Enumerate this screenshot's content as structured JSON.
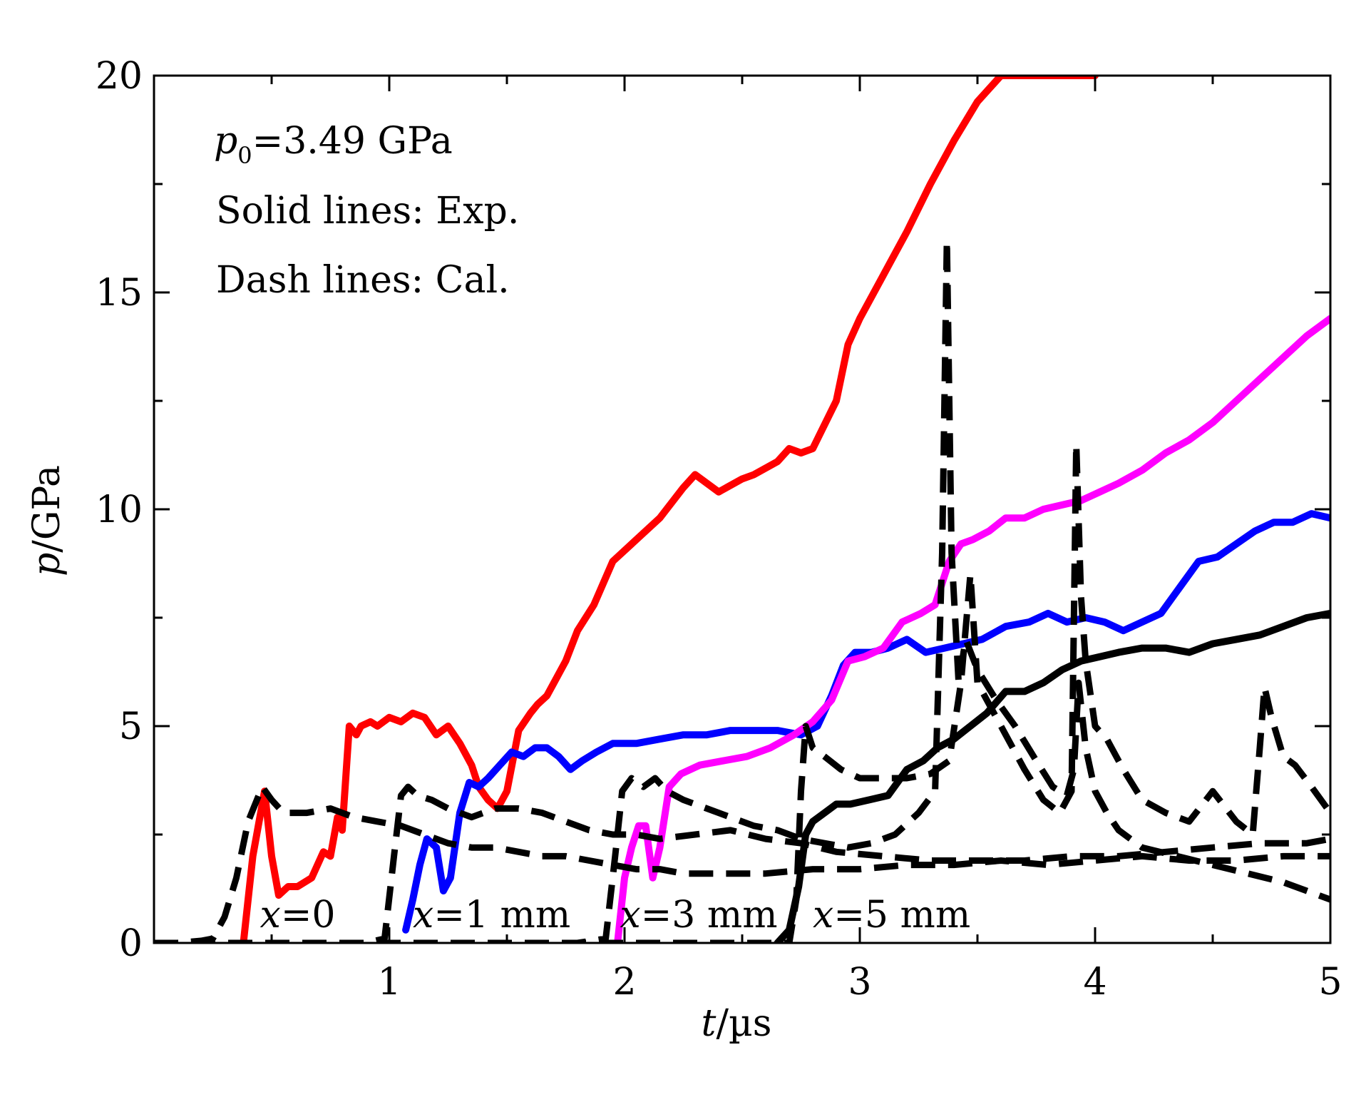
{
  "chart_data": {
    "type": "line",
    "title": "",
    "xlabel_italic": "t",
    "xlabel_rest": "/µs",
    "ylabel_italic": "p",
    "ylabel_rest": "/GPa",
    "xlim": [
      0,
      5
    ],
    "ylim": [
      0,
      20
    ],
    "x_ticks": [
      1,
      2,
      3,
      4,
      5
    ],
    "y_ticks": [
      0,
      5,
      10,
      15,
      20
    ],
    "x_tick_labels": [
      "1",
      "2",
      "3",
      "4",
      "5"
    ],
    "y_tick_labels": [
      "0",
      "5",
      "10",
      "15",
      "20"
    ],
    "grid": false,
    "annotations": {
      "p0_symbol": "p",
      "p0_subscript": "0",
      "p0_value": "=3.49 GPa",
      "solid": "Solid lines: Exp.",
      "dash": "Dash lines: Cal."
    },
    "curve_labels": [
      {
        "symbol": "x",
        "text": "=0",
        "x": 0.45
      },
      {
        "symbol": "x",
        "text": "=1 mm",
        "x": 1.1
      },
      {
        "symbol": "x",
        "text": "=3 mm",
        "x": 1.98
      },
      {
        "symbol": "x",
        "text": "=5 mm",
        "x": 2.8
      }
    ],
    "series": [
      {
        "name": "x=0 Exp.",
        "style": "solid",
        "color": "#ff0000",
        "x": [
          0.38,
          0.42,
          0.47,
          0.5,
          0.53,
          0.57,
          0.61,
          0.67,
          0.72,
          0.75,
          0.78,
          0.8,
          0.83,
          0.86,
          0.88,
          0.92,
          0.95,
          1.0,
          1.05,
          1.1,
          1.15,
          1.2,
          1.25,
          1.3,
          1.35,
          1.38,
          1.42,
          1.46,
          1.5,
          1.55,
          1.6,
          1.63,
          1.67,
          1.7,
          1.75,
          1.8,
          1.87,
          1.95,
          2.05,
          2.15,
          2.25,
          2.3,
          2.4,
          2.5,
          2.55,
          2.65,
          2.7,
          2.75,
          2.8,
          2.9,
          2.95,
          3.0,
          3.05,
          3.1,
          3.15,
          3.2,
          3.3,
          3.4,
          3.5,
          3.6,
          3.7,
          3.8,
          3.9,
          3.95,
          4.0
        ],
        "y": [
          0.0,
          2.0,
          3.5,
          2.0,
          1.1,
          1.3,
          1.3,
          1.5,
          2.1,
          2.0,
          2.9,
          2.6,
          5.0,
          4.8,
          5.0,
          5.1,
          5.0,
          5.2,
          5.1,
          5.3,
          5.2,
          4.8,
          5.0,
          4.6,
          4.1,
          3.6,
          3.3,
          3.1,
          3.5,
          4.9,
          5.3,
          5.5,
          5.7,
          6.0,
          6.5,
          7.2,
          7.8,
          8.8,
          9.3,
          9.8,
          10.5,
          10.8,
          10.4,
          10.7,
          10.8,
          11.1,
          11.4,
          11.3,
          11.4,
          12.5,
          13.8,
          14.4,
          14.9,
          15.4,
          15.9,
          16.4,
          17.5,
          18.5,
          19.4,
          20.0,
          20.0,
          20.0,
          20.0,
          20.0,
          20.0
        ]
      },
      {
        "name": "x=1 mm Exp.",
        "style": "solid",
        "color": "#0000ff",
        "x": [
          1.07,
          1.1,
          1.13,
          1.16,
          1.2,
          1.23,
          1.26,
          1.3,
          1.34,
          1.38,
          1.42,
          1.47,
          1.52,
          1.57,
          1.62,
          1.67,
          1.72,
          1.77,
          1.82,
          1.88,
          1.95,
          2.05,
          2.15,
          2.25,
          2.35,
          2.45,
          2.55,
          2.65,
          2.75,
          2.82,
          2.88,
          2.93,
          2.98,
          3.05,
          3.12,
          3.2,
          3.28,
          3.36,
          3.44,
          3.52,
          3.62,
          3.72,
          3.8,
          3.88,
          3.96,
          4.04,
          4.12,
          4.2,
          4.28,
          4.36,
          4.44,
          4.52,
          4.6,
          4.68,
          4.76,
          4.84,
          4.92,
          5.0
        ],
        "y": [
          0.3,
          1.0,
          1.8,
          2.4,
          2.2,
          1.2,
          1.5,
          3.0,
          3.7,
          3.6,
          3.8,
          4.1,
          4.4,
          4.3,
          4.5,
          4.5,
          4.3,
          4.0,
          4.2,
          4.4,
          4.6,
          4.6,
          4.7,
          4.8,
          4.8,
          4.9,
          4.9,
          4.9,
          4.8,
          5.0,
          5.7,
          6.4,
          6.7,
          6.7,
          6.8,
          7.0,
          6.7,
          6.8,
          6.9,
          7.0,
          7.3,
          7.4,
          7.6,
          7.4,
          7.5,
          7.4,
          7.2,
          7.4,
          7.6,
          8.2,
          8.8,
          8.9,
          9.2,
          9.5,
          9.7,
          9.7,
          9.9,
          9.8
        ]
      },
      {
        "name": "x=3 mm Exp.",
        "style": "solid",
        "color": "#ff00ff",
        "x": [
          1.97,
          2.0,
          2.03,
          2.06,
          2.09,
          2.12,
          2.15,
          2.19,
          2.24,
          2.32,
          2.42,
          2.52,
          2.62,
          2.72,
          2.8,
          2.88,
          2.95,
          3.02,
          3.1,
          3.18,
          3.26,
          3.32,
          3.38,
          3.43,
          3.48,
          3.55,
          3.62,
          3.7,
          3.78,
          3.86,
          3.94,
          4.02,
          4.1,
          4.2,
          4.3,
          4.4,
          4.5,
          4.6,
          4.7,
          4.8,
          4.9,
          5.0
        ],
        "y": [
          0.0,
          1.5,
          2.2,
          2.7,
          2.7,
          1.5,
          2.2,
          3.6,
          3.9,
          4.1,
          4.2,
          4.3,
          4.5,
          4.8,
          5.1,
          5.6,
          6.5,
          6.6,
          6.8,
          7.4,
          7.6,
          7.8,
          8.8,
          9.2,
          9.3,
          9.5,
          9.8,
          9.8,
          10.0,
          10.1,
          10.2,
          10.4,
          10.6,
          10.9,
          11.3,
          11.6,
          12.0,
          12.5,
          13.0,
          13.5,
          14.0,
          14.4
        ]
      },
      {
        "name": "x=5 mm Exp.",
        "style": "solid",
        "color": "#000000",
        "x": [
          2.65,
          2.7,
          2.74,
          2.77,
          2.8,
          2.85,
          2.9,
          2.96,
          3.04,
          3.12,
          3.2,
          3.27,
          3.33,
          3.4,
          3.47,
          3.54,
          3.62,
          3.7,
          3.78,
          3.86,
          3.94,
          4.02,
          4.1,
          4.2,
          4.3,
          4.4,
          4.5,
          4.6,
          4.7,
          4.8,
          4.9,
          5.0
        ],
        "y": [
          0.0,
          0.3,
          1.3,
          2.5,
          2.8,
          3.0,
          3.2,
          3.2,
          3.3,
          3.4,
          4.0,
          4.2,
          4.5,
          4.7,
          5.0,
          5.3,
          5.8,
          5.8,
          6.0,
          6.3,
          6.5,
          6.6,
          6.7,
          6.8,
          6.8,
          6.7,
          6.9,
          7.0,
          7.1,
          7.3,
          7.5,
          7.6
        ]
      },
      {
        "name": "x=0 Cal.",
        "style": "dashed",
        "color": "#000000",
        "x": [
          0.0,
          0.1,
          0.2,
          0.25,
          0.3,
          0.35,
          0.4,
          0.46,
          0.5,
          0.55,
          0.65,
          0.75,
          0.85,
          0.95,
          1.05,
          1.15,
          1.25,
          1.35,
          1.45,
          1.55,
          1.65,
          1.75,
          1.85,
          1.95,
          2.05,
          2.15,
          2.25,
          2.4,
          2.6,
          2.8,
          3.0,
          3.2,
          3.4,
          3.6,
          3.8,
          4.0,
          4.2,
          4.4,
          4.6,
          4.8,
          5.0
        ],
        "y": [
          0.0,
          0.0,
          0.05,
          0.1,
          0.6,
          1.5,
          2.8,
          3.6,
          3.3,
          3.0,
          3.0,
          3.1,
          2.9,
          2.8,
          2.7,
          2.5,
          2.3,
          2.2,
          2.2,
          2.1,
          2.0,
          2.0,
          1.9,
          1.8,
          1.7,
          1.7,
          1.6,
          1.6,
          1.6,
          1.7,
          1.7,
          1.8,
          1.8,
          1.9,
          1.8,
          1.9,
          2.0,
          1.9,
          1.9,
          2.0,
          2.0
        ]
      },
      {
        "name": "x=1 mm Cal.",
        "style": "dashed",
        "color": "#000000",
        "x": [
          0.0,
          0.5,
          0.9,
          0.98,
          1.02,
          1.05,
          1.08,
          1.12,
          1.18,
          1.25,
          1.35,
          1.45,
          1.55,
          1.65,
          1.75,
          1.85,
          1.95,
          2.05,
          2.15,
          2.3,
          2.45,
          2.6,
          2.75,
          2.9,
          3.1,
          3.3,
          3.5,
          3.7,
          3.9,
          4.1,
          4.3,
          4.5,
          4.7,
          4.9,
          5.0
        ],
        "y": [
          0.0,
          0.0,
          0.0,
          0.1,
          2.0,
          3.4,
          3.6,
          3.4,
          3.3,
          3.1,
          2.9,
          3.1,
          3.1,
          3.0,
          2.8,
          2.6,
          2.5,
          2.5,
          2.4,
          2.5,
          2.6,
          2.4,
          2.3,
          2.1,
          2.0,
          1.9,
          1.9,
          1.9,
          2.0,
          2.0,
          2.1,
          2.2,
          2.3,
          2.3,
          2.4
        ]
      },
      {
        "name": "x=3 mm Cal.",
        "style": "dashed",
        "color": "#000000",
        "x": [
          0.0,
          1.0,
          1.8,
          1.92,
          1.96,
          1.99,
          2.03,
          2.08,
          2.13,
          2.18,
          2.25,
          2.35,
          2.45,
          2.55,
          2.65,
          2.75,
          2.85,
          2.95,
          3.05,
          3.15,
          3.25,
          3.32,
          3.35,
          3.37,
          3.39,
          3.42,
          3.45,
          3.5,
          3.58,
          3.66,
          3.75,
          3.82,
          3.88,
          3.91,
          3.93,
          3.96,
          4.0,
          4.05,
          4.1,
          4.2,
          4.35,
          4.5,
          4.65,
          4.8,
          4.9,
          5.0
        ],
        "y": [
          0.0,
          0.0,
          0.0,
          0.1,
          2.0,
          3.5,
          3.8,
          3.6,
          3.8,
          3.5,
          3.3,
          3.1,
          2.9,
          2.7,
          2.6,
          2.4,
          2.3,
          2.2,
          2.3,
          2.5,
          3.0,
          3.5,
          9.0,
          16.2,
          9.0,
          6.0,
          7.0,
          6.3,
          5.6,
          5.0,
          4.2,
          3.6,
          3.4,
          4.0,
          6.0,
          4.5,
          3.5,
          3.0,
          2.6,
          2.2,
          2.0,
          1.8,
          1.6,
          1.4,
          1.2,
          1.0
        ]
      },
      {
        "name": "x=5 mm Cal.",
        "style": "dashed",
        "color": "#000000",
        "x": [
          0.0,
          1.5,
          2.5,
          2.7,
          2.73,
          2.75,
          2.77,
          2.8,
          2.85,
          2.92,
          3.0,
          3.1,
          3.2,
          3.3,
          3.38,
          3.43,
          3.47,
          3.5,
          3.55,
          3.62,
          3.7,
          3.78,
          3.85,
          3.9,
          3.92,
          3.94,
          3.96,
          4.0,
          4.05,
          4.12,
          4.2,
          4.3,
          4.4,
          4.5,
          4.6,
          4.67,
          4.7,
          4.72,
          4.75,
          4.8,
          4.85,
          4.92,
          5.0
        ],
        "y": [
          0.0,
          0.0,
          0.0,
          0.0,
          1.0,
          3.5,
          5.0,
          4.5,
          4.3,
          4.0,
          3.8,
          3.8,
          3.8,
          3.9,
          4.2,
          6.0,
          8.5,
          6.0,
          5.5,
          4.8,
          4.0,
          3.3,
          3.0,
          3.5,
          11.5,
          8.0,
          6.5,
          5.0,
          4.7,
          4.0,
          3.3,
          3.0,
          2.8,
          3.5,
          2.8,
          2.5,
          4.5,
          5.9,
          5.2,
          4.3,
          4.1,
          3.6,
          3.0
        ]
      }
    ]
  }
}
